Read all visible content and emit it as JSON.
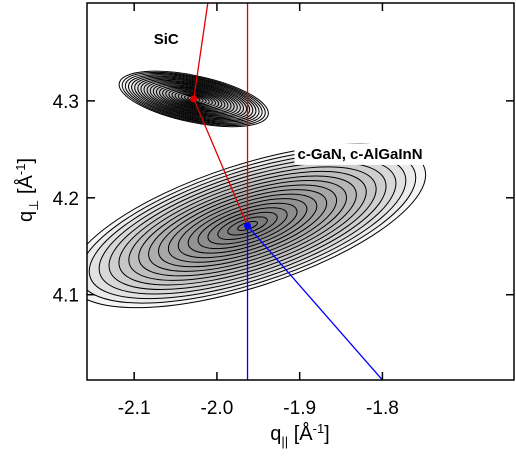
{
  "chart_data": {
    "type": "contour",
    "xlabel": [
      "q",
      "||",
      " [Å",
      "-1",
      "]"
    ],
    "ylabel": [
      "q",
      "⊥",
      " [Å",
      "-1",
      "]"
    ],
    "xlim": [
      -2.157,
      -1.641
    ],
    "ylim": [
      4.012,
      4.401
    ],
    "xticks": [
      -2.1,
      {
        "value": -2,
        "label": "-2.0"
      },
      -1.9,
      -1.8
    ],
    "yticks": [
      4.1,
      4.2,
      4.3
    ],
    "peaks": [
      {
        "name": "SiC",
        "x": -2.028,
        "y": 4.302,
        "rx": 0.092,
        "ry": 0.024,
        "angle": 12,
        "levels": 24,
        "color": "#000",
        "marker_color": "#e00000"
      },
      {
        "name": "c-GaN, c-AlGaInN",
        "x": -1.963,
        "y": 4.171,
        "rx": 0.225,
        "ry": 0.063,
        "angle": -18,
        "levels": 18,
        "color": "#000",
        "marker_color": "#0000ff"
      }
    ],
    "lines": [
      {
        "color": "#e00000",
        "x": [
          -2.011,
          -2.028,
          -1.963
        ],
        "y": [
          4.401,
          4.302,
          4.171
        ]
      },
      {
        "color": "#e00000",
        "x": [
          -1.963,
          -1.963
        ],
        "y": [
          4.401,
          4.171
        ]
      },
      {
        "color": "#0000ff",
        "x": [
          -1.963,
          -1.963
        ],
        "y": [
          4.171,
          4.012
        ]
      },
      {
        "color": "#0000ff",
        "x": [
          -1.963,
          -1.8
        ],
        "y": [
          4.171,
          4.012
        ]
      }
    ]
  }
}
